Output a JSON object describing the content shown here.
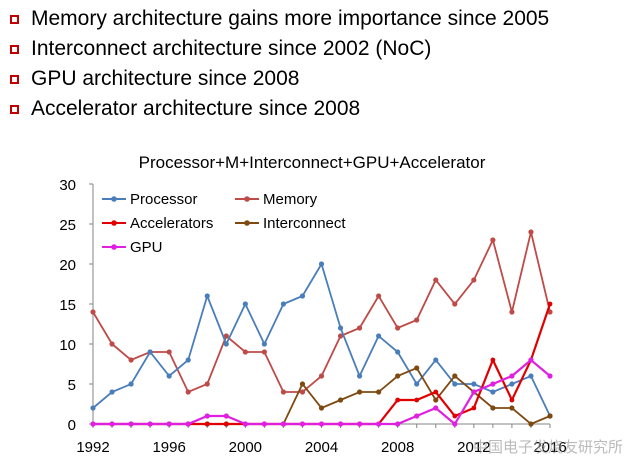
{
  "bullets": [
    {
      "text": "Memory architecture gains more importance since 2005"
    },
    {
      "text": "Interconnect architecture since 2002 (NoC)"
    },
    {
      "text": "GPU architecture since 2008"
    },
    {
      "text": "Accelerator architecture since 2008"
    }
  ],
  "colors": {
    "bullet_marker": "#c00000",
    "processor": "#4a7ebb",
    "memory": "#be4b48",
    "accelerators": "#e00000",
    "interconnect": "#7f4a10",
    "gpu": "#e020e0"
  },
  "watermark": "中国电子发烧友研究所",
  "chart_data": {
    "type": "line",
    "title": "Processor+M+Interconnect+GPU+Accelerator",
    "xlabel": "",
    "ylabel": "",
    "x": [
      1992,
      1993,
      1994,
      1995,
      1996,
      1997,
      1998,
      1999,
      2000,
      2001,
      2002,
      2003,
      2004,
      2005,
      2006,
      2007,
      2008,
      2009,
      2010,
      2011,
      2012,
      2013,
      2014,
      2015,
      2016
    ],
    "xlim": [
      1992,
      2016
    ],
    "ylim": [
      0,
      30
    ],
    "x_ticks": [
      1992,
      1996,
      2000,
      2004,
      2008,
      2012,
      2016
    ],
    "y_ticks": [
      0,
      5,
      10,
      15,
      20,
      25,
      30
    ],
    "grid": false,
    "legend": "top-left",
    "series": [
      {
        "name": "Processor",
        "key": "processor",
        "values": [
          2,
          4,
          5,
          9,
          6,
          8,
          16,
          10,
          15,
          10,
          15,
          16,
          20,
          12,
          6,
          11,
          9,
          5,
          8,
          5,
          5,
          4,
          5,
          6,
          1
        ]
      },
      {
        "name": "Memory",
        "key": "memory",
        "values": [
          14,
          10,
          8,
          9,
          9,
          4,
          5,
          11,
          9,
          9,
          4,
          4,
          6,
          11,
          12,
          16,
          12,
          13,
          18,
          15,
          18,
          23,
          14,
          24,
          14
        ]
      },
      {
        "name": "Accelerators",
        "key": "accelerators",
        "values": [
          0,
          0,
          0,
          0,
          0,
          0,
          0,
          0,
          0,
          0,
          0,
          0,
          0,
          0,
          0,
          0,
          3,
          3,
          4,
          1,
          2,
          8,
          3,
          8,
          15
        ]
      },
      {
        "name": "Interconnect",
        "key": "interconnect",
        "values": [
          null,
          null,
          null,
          null,
          0,
          0,
          0,
          0,
          null,
          null,
          0,
          5,
          2,
          3,
          4,
          4,
          6,
          7,
          3,
          6,
          4,
          2,
          2,
          0,
          1
        ]
      },
      {
        "name": "GPU",
        "key": "gpu",
        "values": [
          0,
          0,
          0,
          0,
          0,
          0,
          1,
          1,
          0,
          0,
          0,
          0,
          0,
          0,
          0,
          0,
          0,
          1,
          2,
          0,
          4,
          5,
          6,
          8,
          6
        ]
      }
    ]
  }
}
